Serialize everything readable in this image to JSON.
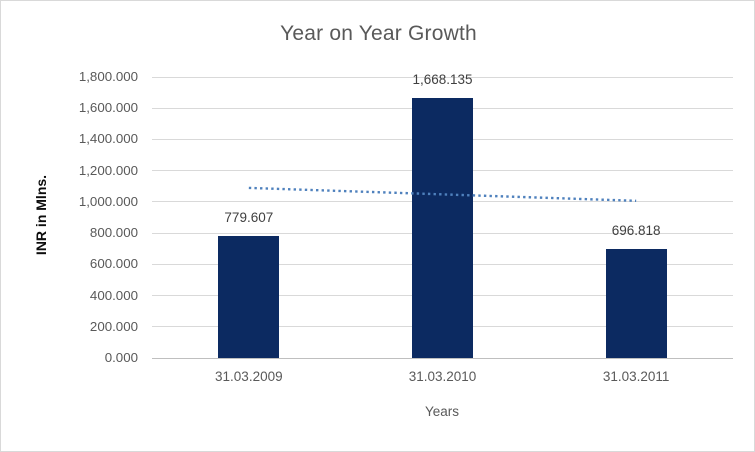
{
  "chart_data": {
    "type": "bar",
    "title": "Year on Year Growth",
    "xlabel": "Years",
    "ylabel": "INR in Mlns.",
    "categories": [
      "31.03.2009",
      "31.03.2010",
      "31.03.2011"
    ],
    "values": [
      779.607,
      1668.135,
      696.818
    ],
    "data_labels": [
      "779.607",
      "1,668.135",
      "696.818"
    ],
    "ylim": [
      0,
      1800
    ],
    "ytick_step": 200,
    "ytick_labels": [
      "0.000",
      "200.000",
      "400.000",
      "600.000",
      "800.000",
      "1,000.000",
      "1,200.000",
      "1,400.000",
      "1,600.000",
      "1,800.000"
    ],
    "grid": true,
    "legend": "none",
    "trendline": {
      "type": "linear",
      "style": "dotted",
      "endpoint_values": [
        1089.6,
        1006.8
      ]
    },
    "colors": {
      "bar": "#0c2a61",
      "trendline": "#4f81bd",
      "gridline": "#d9d9d9",
      "axis_line": "#bfbfbf",
      "axis_text": "#595959",
      "title_text": "#595959",
      "data_label_text": "#404040",
      "y_axis_title_text": "#0d0d0d"
    }
  }
}
